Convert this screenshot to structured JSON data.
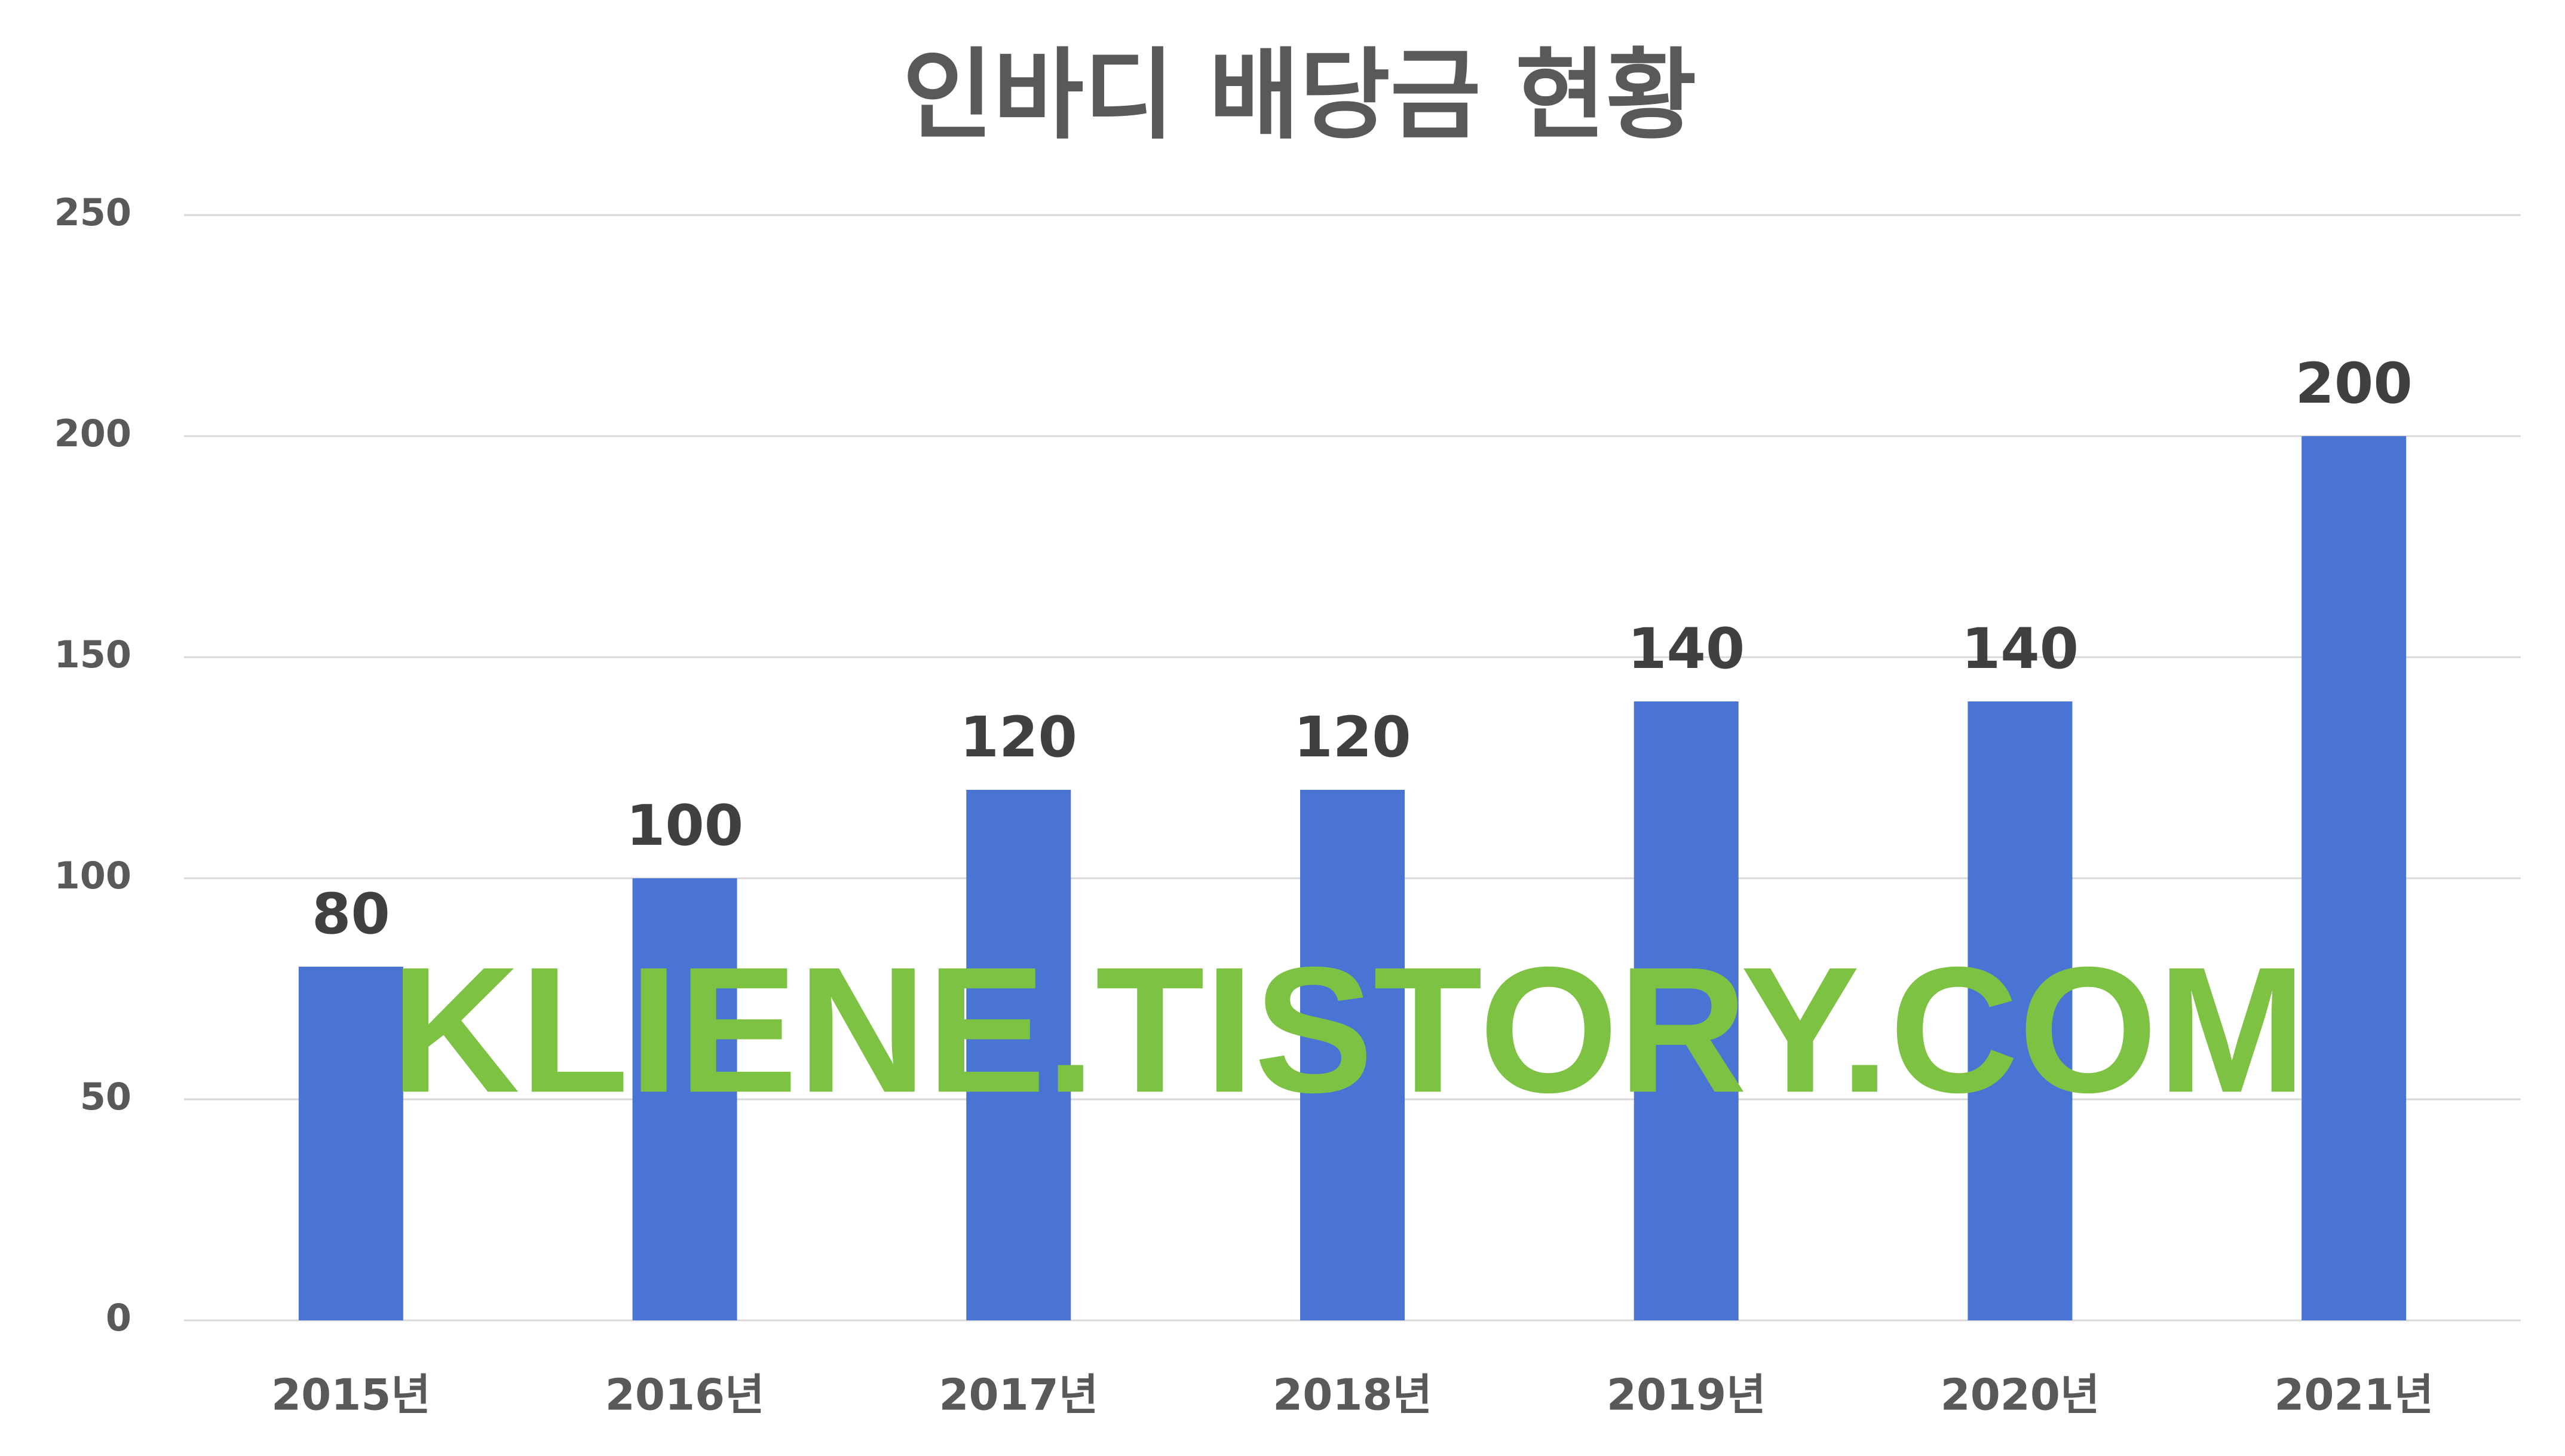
{
  "chart_data": {
    "type": "bar",
    "title": "인바디 배당금 현황",
    "categories": [
      "2015년",
      "2016년",
      "2017년",
      "2018년",
      "2019년",
      "2020년",
      "2021년"
    ],
    "values": [
      80,
      100,
      120,
      120,
      140,
      140,
      200
    ],
    "color": "#4a74d4",
    "ylim": [
      0,
      250
    ],
    "yticks": [
      0,
      50,
      100,
      150,
      200,
      250
    ],
    "grid": true,
    "watermark": "KLIENE.TISTORY.COM"
  }
}
